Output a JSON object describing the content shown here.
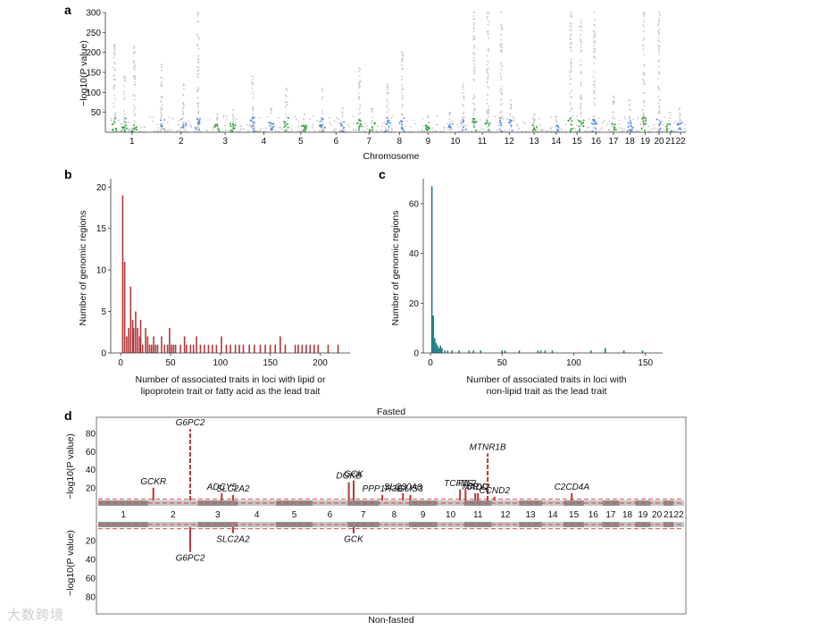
{
  "chart_data": [
    {
      "panel": "a",
      "type": "scatter",
      "xlabel": "Chromosome",
      "ylabel": "−log10(P value)",
      "ylim": [
        0,
        300
      ],
      "yticks": [
        50,
        100,
        150,
        200,
        250,
        300
      ],
      "chromosomes": [
        "1",
        "2",
        "3",
        "4",
        "5",
        "6",
        "7",
        "8",
        "9",
        "10",
        "11",
        "12",
        "13",
        "14",
        "15",
        "16",
        "17",
        "18",
        "19",
        "20",
        "21",
        "22"
      ],
      "colors": {
        "background": "#c8c8c8",
        "green": "#2aa83a",
        "blue": "#5b8ee0"
      },
      "peaks": [
        {
          "chr": "1",
          "pos": 0.15,
          "y": 220,
          "c": "g"
        },
        {
          "chr": "1",
          "pos": 0.55,
          "y": 215,
          "c": "g"
        },
        {
          "chr": "1",
          "pos": 0.35,
          "y": 140,
          "c": "g"
        },
        {
          "chr": "2",
          "pos": 0.1,
          "y": 170,
          "c": "b"
        },
        {
          "chr": "2",
          "pos": 0.55,
          "y": 120,
          "c": "b"
        },
        {
          "chr": "2",
          "pos": 0.85,
          "y": 300,
          "c": "b"
        },
        {
          "chr": "3",
          "pos": 0.3,
          "y": 45,
          "c": "g"
        },
        {
          "chr": "3",
          "pos": 0.7,
          "y": 55,
          "c": "g"
        },
        {
          "chr": "4",
          "pos": 0.2,
          "y": 140,
          "c": "b"
        },
        {
          "chr": "4",
          "pos": 0.7,
          "y": 60,
          "c": "b"
        },
        {
          "chr": "5",
          "pos": 0.1,
          "y": 110,
          "c": "g"
        },
        {
          "chr": "5",
          "pos": 0.6,
          "y": 45,
          "c": "g"
        },
        {
          "chr": "6",
          "pos": 0.1,
          "y": 110,
          "c": "b"
        },
        {
          "chr": "6",
          "pos": 0.7,
          "y": 60,
          "c": "b"
        },
        {
          "chr": "7",
          "pos": 0.2,
          "y": 160,
          "c": "g"
        },
        {
          "chr": "7",
          "pos": 0.6,
          "y": 60,
          "c": "g"
        },
        {
          "chr": "8",
          "pos": 0.1,
          "y": 120,
          "c": "b"
        },
        {
          "chr": "8",
          "pos": 0.6,
          "y": 200,
          "c": "b"
        },
        {
          "chr": "9",
          "pos": 0.5,
          "y": 40,
          "c": "g"
        },
        {
          "chr": "10",
          "pos": 0.3,
          "y": 50,
          "c": "b"
        },
        {
          "chr": "10",
          "pos": 0.8,
          "y": 120,
          "c": "b"
        },
        {
          "chr": "11",
          "pos": 0.2,
          "y": 300,
          "c": "g"
        },
        {
          "chr": "11",
          "pos": 0.7,
          "y": 300,
          "c": "g"
        },
        {
          "chr": "12",
          "pos": 0.2,
          "y": 300,
          "c": "b"
        },
        {
          "chr": "12",
          "pos": 0.55,
          "y": 80,
          "c": "b"
        },
        {
          "chr": "13",
          "pos": 0.5,
          "y": 45,
          "c": "g"
        },
        {
          "chr": "14",
          "pos": 0.5,
          "y": 40,
          "c": "b"
        },
        {
          "chr": "15",
          "pos": 0.2,
          "y": 300,
          "c": "g"
        },
        {
          "chr": "15",
          "pos": 0.7,
          "y": 280,
          "c": "g"
        },
        {
          "chr": "16",
          "pos": 0.4,
          "y": 300,
          "c": "b"
        },
        {
          "chr": "17",
          "pos": 0.5,
          "y": 90,
          "c": "g"
        },
        {
          "chr": "18",
          "pos": 0.5,
          "y": 80,
          "c": "b"
        },
        {
          "chr": "19",
          "pos": 0.4,
          "y": 300,
          "c": "g"
        },
        {
          "chr": "20",
          "pos": 0.5,
          "y": 300,
          "c": "b"
        },
        {
          "chr": "21",
          "pos": 0.4,
          "y": 50,
          "c": "g"
        },
        {
          "chr": "22",
          "pos": 0.4,
          "y": 60,
          "c": "b"
        }
      ]
    },
    {
      "panel": "b",
      "type": "bar",
      "xlabel": "Number of associated traits in loci with lipid or lipoprotein trait or fatty acid as the lead trait",
      "xlabel_lines": [
        "Number of associated traits in loci with lipid or",
        "lipoprotein trait or fatty acid as the lead trait"
      ],
      "ylabel": "Number of genomic regions",
      "xlim": [
        -10,
        230
      ],
      "ylim": [
        0,
        21
      ],
      "xticks": [
        0,
        50,
        100,
        150,
        200
      ],
      "yticks": [
        0,
        5,
        10,
        15,
        20
      ],
      "color": "#b0393a",
      "x": [
        2,
        4,
        6,
        8,
        10,
        12,
        13,
        15,
        17,
        19,
        20,
        22,
        25,
        27,
        29,
        31,
        33,
        35,
        37,
        41,
        44,
        47,
        49,
        51,
        53,
        55,
        60,
        64,
        66,
        70,
        73,
        76,
        80,
        84,
        88,
        92,
        96,
        101,
        106,
        110,
        115,
        119,
        123,
        129,
        134,
        140,
        145,
        150,
        155,
        160,
        165,
        175,
        178,
        182,
        186,
        190,
        194,
        198,
        208,
        218
      ],
      "values": [
        19,
        11,
        2,
        3,
        8,
        4,
        3,
        5,
        3,
        2,
        4,
        1,
        3,
        2,
        1,
        1,
        2,
        1,
        1,
        2,
        1,
        1,
        3,
        1,
        1,
        1,
        1,
        2,
        1,
        1,
        1,
        2,
        1,
        1,
        1,
        1,
        1,
        2,
        1,
        1,
        1,
        1,
        1,
        1,
        1,
        1,
        1,
        1,
        1,
        2,
        1,
        1,
        1,
        1,
        1,
        1,
        1,
        1,
        1,
        1
      ]
    },
    {
      "panel": "c",
      "type": "bar",
      "xlabel": "Number of associated traits in loci with non-lipid trait as the lead trait",
      "xlabel_lines": [
        "Number of associated traits in loci with",
        "non-lipid trait as the lead trait"
      ],
      "ylabel": "Number of genomic regions",
      "xlim": [
        -5,
        162
      ],
      "ylim": [
        0,
        70
      ],
      "xticks": [
        0,
        50,
        100,
        150
      ],
      "yticks": [
        0,
        20,
        40,
        60
      ],
      "color": "#1c7d84",
      "x": [
        1,
        2,
        3,
        4,
        5,
        6,
        7,
        8,
        10,
        12,
        15,
        20,
        27,
        30,
        35,
        50,
        52,
        62,
        75,
        77,
        80,
        85,
        112,
        122,
        135,
        148
      ],
      "values": [
        67,
        15,
        6,
        4,
        3,
        2,
        3,
        2,
        1,
        1,
        1,
        1,
        1,
        1,
        1,
        1,
        1,
        1,
        1,
        1,
        1,
        1,
        1,
        2,
        1,
        1
      ]
    },
    {
      "panel": "d",
      "type": "scatter",
      "title_top": "Fasted",
      "title_bottom": "Non-fasted",
      "xlabel": "",
      "ylabel": "−log10(P value)",
      "ylim_top": [
        0,
        95
      ],
      "ylim_bottom": [
        0,
        95
      ],
      "yticks": [
        20,
        40,
        60,
        80
      ],
      "threshold": 7.3,
      "chromosomes": [
        "1",
        "2",
        "3",
        "4",
        "5",
        "6",
        "7",
        "8",
        "9",
        "10",
        "11",
        "12",
        "13",
        "14",
        "15",
        "16",
        "17",
        "18",
        "19",
        "20",
        "21",
        "22"
      ],
      "colors": {
        "peak": "#b0393a",
        "threshold": "#e04545",
        "band_dark": "#8e8e8e",
        "band_light": "#c4c4c4"
      },
      "genes_top": [
        {
          "gene": "GCKR",
          "chr": "2",
          "pos": 0.1,
          "y": 20
        },
        {
          "gene": "G6PC2",
          "chr": "2",
          "pos": 0.85,
          "y": 85
        },
        {
          "gene": "ADCY5",
          "chr": "3",
          "pos": 0.6,
          "y": 14
        },
        {
          "gene": "SLC2A2",
          "chr": "3",
          "pos": 0.88,
          "y": 12
        },
        {
          "gene": "DGKB",
          "chr": "7",
          "pos": 0.05,
          "y": 26
        },
        {
          "gene": "GCK",
          "chr": "7",
          "pos": 0.2,
          "y": 28
        },
        {
          "gene": "PPP1R3B",
          "chr": "8",
          "pos": 0.1,
          "y": 12
        },
        {
          "gene": "SLC30A8",
          "chr": "8",
          "pos": 0.8,
          "y": 14
        },
        {
          "gene": "GLIS3",
          "chr": "9",
          "pos": 0.05,
          "y": 12
        },
        {
          "gene": "TCF7L2",
          "chr": "10",
          "pos": 0.85,
          "y": 18
        },
        {
          "gene": "INS",
          "chr": "11",
          "pos": 0.05,
          "y": 18
        },
        {
          "gene": "MADD",
          "chr": "11",
          "pos": 0.4,
          "y": 14
        },
        {
          "gene": "CRY2",
          "chr": "11",
          "pos": 0.5,
          "y": 14
        },
        {
          "gene": "MTNR1B",
          "chr": "11",
          "pos": 0.85,
          "y": 58
        },
        {
          "gene": "CCND2",
          "chr": "12",
          "pos": 0.1,
          "y": 10
        },
        {
          "gene": "C2CD4A",
          "chr": "15",
          "pos": 0.4,
          "y": 14
        }
      ],
      "genes_bottom": [
        {
          "gene": "G6PC2",
          "chr": "2",
          "pos": 0.85,
          "y": 32
        },
        {
          "gene": "SLC2A2",
          "chr": "3",
          "pos": 0.88,
          "y": 12
        },
        {
          "gene": "GCK",
          "chr": "7",
          "pos": 0.2,
          "y": 12
        }
      ]
    }
  ],
  "panel_letters": {
    "a": "a",
    "b": "b",
    "c": "c",
    "d": "d"
  },
  "watermark": "大数跨境"
}
